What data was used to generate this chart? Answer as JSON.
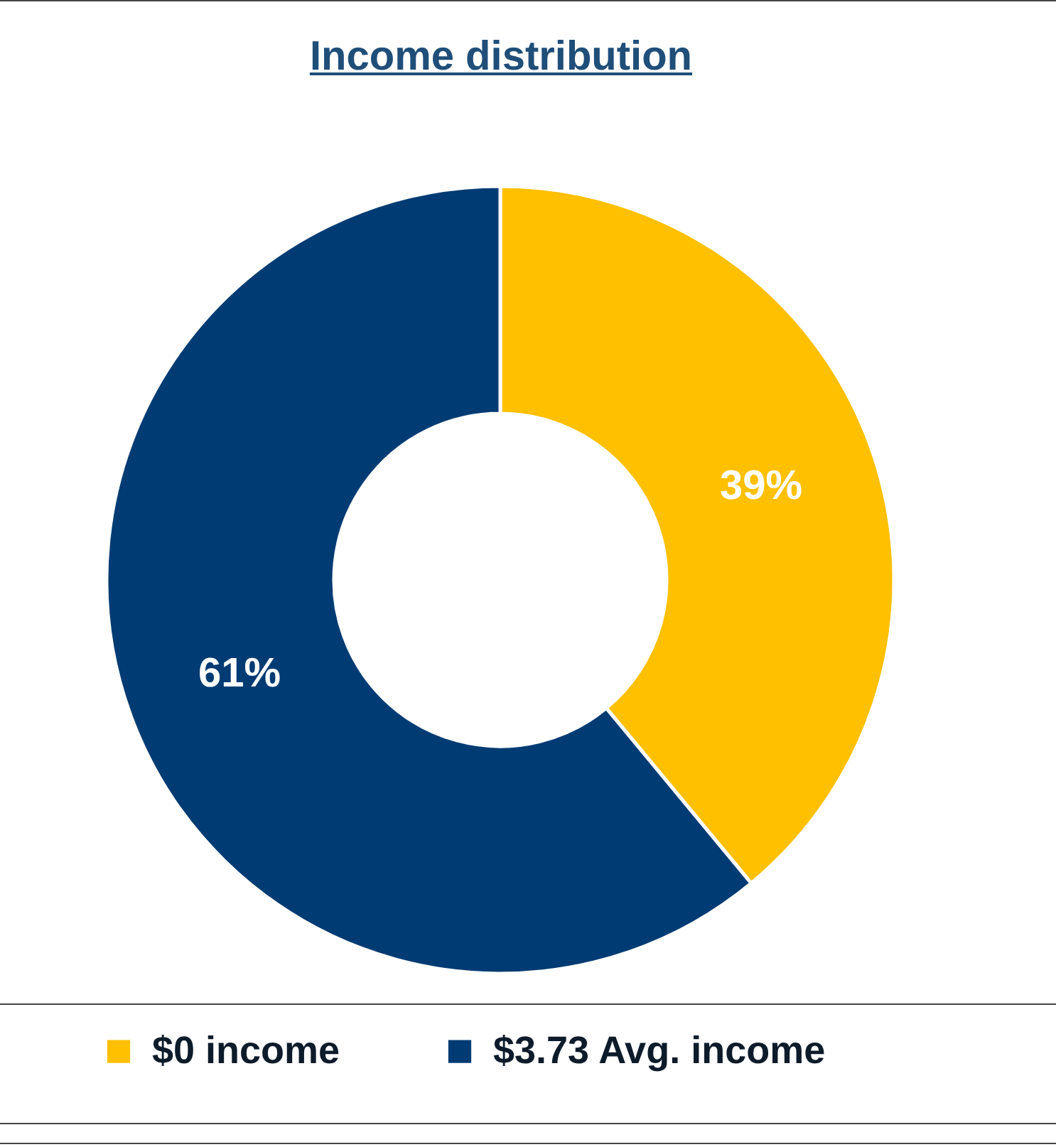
{
  "chart_data": {
    "type": "donut",
    "title": "Income distribution",
    "categories": [
      "$0 income",
      "$3.73 Avg. income"
    ],
    "values": [
      39,
      61
    ],
    "colors": [
      "#ffc000",
      "#003b73"
    ],
    "value_labels": [
      "39%",
      "61%"
    ],
    "legend": "bottom"
  }
}
